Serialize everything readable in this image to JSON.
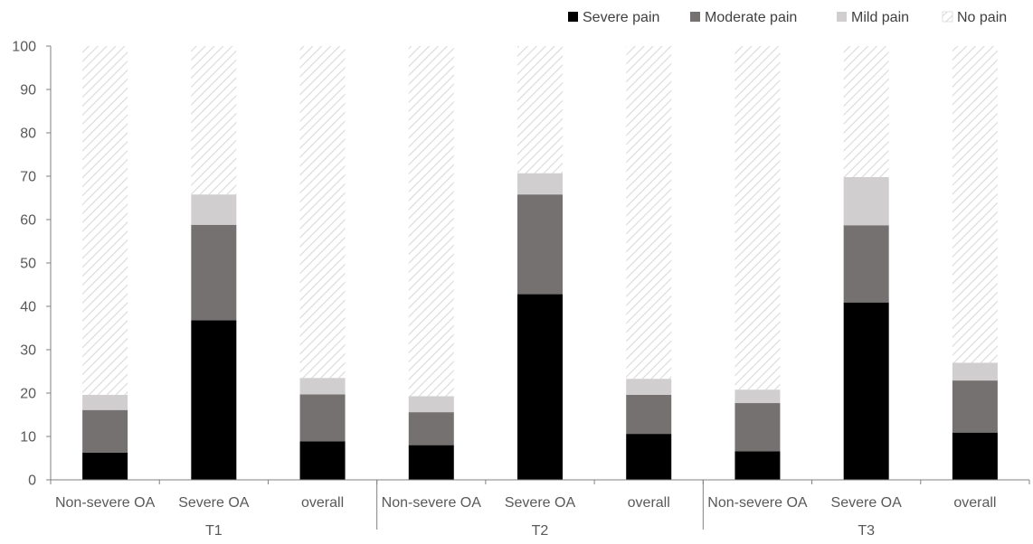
{
  "chart_data": {
    "type": "bar",
    "stacked": true,
    "categories": [
      "Non-severe OA",
      "Severe OA",
      "overall",
      "Non-severe OA",
      "Severe OA",
      "overall",
      "Non-severe OA",
      "Severe OA",
      "overall"
    ],
    "groups": [
      {
        "label": "T1",
        "span": [
          0,
          2
        ]
      },
      {
        "label": "T2",
        "span": [
          3,
          5
        ]
      },
      {
        "label": "T3",
        "span": [
          6,
          8
        ]
      }
    ],
    "series": [
      {
        "name": "Severe pain",
        "color": "#000000",
        "values": [
          6.3,
          36.8,
          8.9,
          8.0,
          42.8,
          10.6,
          6.6,
          40.9,
          10.9
        ]
      },
      {
        "name": "Moderate pain",
        "color": "#757171",
        "values": [
          9.8,
          22.0,
          10.8,
          7.6,
          23.0,
          9.0,
          11.1,
          17.8,
          12.0
        ]
      },
      {
        "name": "Mild pain",
        "color": "#d0cece",
        "values": [
          3.5,
          7.0,
          3.8,
          3.7,
          4.9,
          3.7,
          3.1,
          11.1,
          4.1
        ]
      },
      {
        "name": "No pain",
        "pattern": "diagonal-hatch",
        "values": [
          80.4,
          34.2,
          76.5,
          80.7,
          29.3,
          76.7,
          79.2,
          30.2,
          73.0
        ]
      }
    ],
    "ylim": [
      0,
      100
    ],
    "yticks": [
      0,
      10,
      20,
      30,
      40,
      50,
      60,
      70,
      80,
      90,
      100
    ],
    "grid": false,
    "legend_position": "top-right",
    "title": "",
    "xlabel": "",
    "ylabel": ""
  }
}
